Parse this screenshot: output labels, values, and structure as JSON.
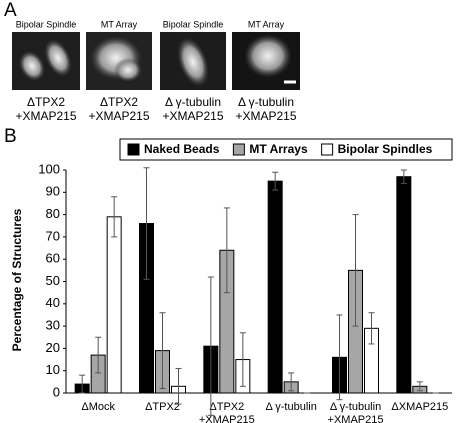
{
  "panel_a": {
    "label": "A",
    "images": [
      {
        "title": "Bipolar Spindle",
        "caption": [
          "ΔTPX2",
          "+XMAP215"
        ]
      },
      {
        "title": "MT Array",
        "caption": [
          "ΔTPX2",
          "+XMAP215"
        ]
      },
      {
        "title": "Bipolar Spindle",
        "caption": [
          "Δ γ-tubulin",
          "+XMAP215"
        ]
      },
      {
        "title": "MT Array",
        "caption": [
          "Δ γ-tubulin",
          "+XMAP215"
        ]
      }
    ]
  },
  "chart_data": {
    "type": "bar",
    "panel_label": "B",
    "y_label": "Percentage of Structures",
    "categories": [
      [
        "ΔMock"
      ],
      [
        "ΔTPX2"
      ],
      [
        "ΔTPX2",
        "+XMAP215"
      ],
      [
        "Δ γ-tubulin"
      ],
      [
        "Δ γ-tubulin",
        "+XMAP215"
      ],
      [
        "ΔXMAP215"
      ]
    ],
    "series": [
      {
        "name": "Naked Beads",
        "color": "#000000",
        "values": [
          4,
          76,
          21,
          95,
          16,
          97
        ],
        "errors": [
          4,
          25,
          31,
          4,
          19,
          3
        ]
      },
      {
        "name": "MT Arrays",
        "color": "#a6a6a6",
        "values": [
          17,
          19,
          64,
          5,
          55,
          3
        ],
        "errors": [
          8,
          17,
          19,
          4,
          25,
          2
        ]
      },
      {
        "name": "Bipolar Spindles",
        "color": "#ffffff",
        "values": [
          79,
          3,
          15,
          0,
          29,
          0
        ],
        "errors": [
          9,
          8,
          12,
          0,
          7,
          0
        ]
      }
    ],
    "ylim": [
      0,
      100
    ],
    "yticks": [
      0,
      10,
      20,
      30,
      40,
      50,
      60,
      70,
      80,
      90,
      100
    ],
    "grid": false,
    "legend": "top"
  }
}
